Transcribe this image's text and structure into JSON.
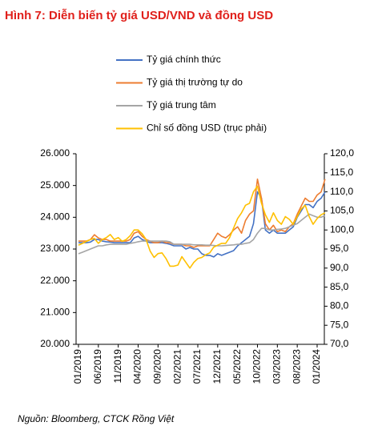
{
  "chart_data": {
    "type": "line",
    "title": "Hình 7: Diễn biến tỷ giá USD/VND và đồng USD",
    "source": "Nguồn: Bloomberg, CTCK Rồng Việt",
    "categories": [
      "01/2019",
      null,
      null,
      null,
      null,
      "06/2019",
      null,
      null,
      null,
      null,
      "11/2019",
      null,
      null,
      null,
      null,
      "04/2020",
      null,
      null,
      null,
      null,
      "09/2020",
      null,
      null,
      null,
      null,
      "02/2021",
      null,
      null,
      null,
      null,
      "07/2021",
      null,
      null,
      null,
      null,
      "12/2021",
      null,
      null,
      null,
      null,
      "05/2022",
      null,
      null,
      null,
      null,
      "10/2022",
      null,
      null,
      null,
      null,
      "03/2023",
      null,
      null,
      null,
      null,
      "08/2023",
      null,
      null,
      null,
      null,
      "01/2024",
      null,
      null
    ],
    "series": [
      {
        "name": "Tỷ giá chính thức",
        "color": "#4472c4",
        "values": [
          23200,
          23200,
          23200,
          23220,
          23300,
          23300,
          23250,
          23230,
          23220,
          23200,
          23200,
          23200,
          23200,
          23200,
          23350,
          23400,
          23300,
          23250,
          23200,
          23200,
          23200,
          23200,
          23180,
          23150,
          23100,
          23100,
          23100,
          23000,
          23050,
          23000,
          23000,
          22850,
          22800,
          22800,
          22750,
          22850,
          22800,
          22850,
          22900,
          22950,
          23100,
          23200,
          23300,
          23400,
          23800,
          24800,
          24600,
          23600,
          23500,
          23600,
          23500,
          23500,
          23500,
          23600,
          23700,
          24000,
          24200,
          24400,
          24400,
          24300,
          24500,
          24600,
          24800
        ]
      },
      {
        "name": "Tỷ giá thị trường tự do",
        "color": "#ed7d31",
        "values": [
          23250,
          23250,
          23250,
          23300,
          23450,
          23350,
          23300,
          23300,
          23250,
          23250,
          23250,
          23250,
          23250,
          23300,
          23500,
          23550,
          23400,
          23300,
          23250,
          23200,
          23200,
          23250,
          23200,
          23200,
          23150,
          23150,
          23150,
          23100,
          23100,
          23050,
          23100,
          23100,
          23100,
          23100,
          23300,
          23500,
          23400,
          23350,
          23450,
          23600,
          23700,
          23500,
          23900,
          24100,
          24200,
          25200,
          24600,
          23800,
          23600,
          23750,
          23550,
          23600,
          23550,
          23700,
          23800,
          24100,
          24350,
          24600,
          24500,
          24500,
          24700,
          24800,
          25200
        ]
      },
      {
        "name": "Tỷ giá trung tâm",
        "color": "#a5a5a5",
        "values": [
          22850,
          22900,
          22950,
          23000,
          23050,
          23100,
          23100,
          23130,
          23150,
          23150,
          23150,
          23150,
          23150,
          23180,
          23200,
          23230,
          23250,
          23250,
          23250,
          23250,
          23250,
          23250,
          23250,
          23230,
          23150,
          23150,
          23150,
          23150,
          23150,
          23130,
          23130,
          23130,
          23120,
          23120,
          23110,
          23100,
          23100,
          23110,
          23120,
          23130,
          23150,
          23150,
          23180,
          23200,
          23300,
          23500,
          23650,
          23650,
          23600,
          23600,
          23620,
          23630,
          23650,
          23700,
          23750,
          23800,
          23900,
          24000,
          24100,
          24050,
          24000,
          24000,
          24050
        ]
      },
      {
        "name": "Chỉ số đồng USD (trục phải)",
        "color": "#ffc000",
        "axis": "y2",
        "values": [
          96,
          96.5,
          97,
          97.5,
          97.8,
          96.5,
          97.5,
          98,
          98.8,
          97.5,
          98,
          97,
          97.5,
          98.5,
          100,
          100,
          99,
          97.5,
          94.5,
          92.8,
          93.8,
          94,
          92.5,
          90.5,
          90.5,
          90.8,
          93,
          91.5,
          90,
          91.5,
          92.5,
          92.8,
          93.5,
          94,
          95.5,
          96,
          96.5,
          96.5,
          98,
          100.5,
          103,
          104.5,
          106.5,
          107,
          110,
          111.5,
          107,
          104,
          102,
          104.5,
          102.5,
          101.5,
          103.5,
          102.8,
          101.5,
          103.5,
          105.5,
          106.5,
          103.5,
          101.5,
          103,
          104,
          104.5
        ]
      }
    ],
    "ylim": [
      20000,
      26000
    ],
    "yticks": [
      {
        "value": 20000,
        "label": "20.000"
      },
      {
        "value": 21000,
        "label": "21.000"
      },
      {
        "value": 22000,
        "label": "22.000"
      },
      {
        "value": 23000,
        "label": "23.000"
      },
      {
        "value": 24000,
        "label": "24.000"
      },
      {
        "value": 25000,
        "label": "25.000"
      },
      {
        "value": 26000,
        "label": "26.000"
      }
    ],
    "y2lim": [
      70,
      120
    ],
    "y2ticks": [
      {
        "value": 70,
        "label": "70,0"
      },
      {
        "value": 75,
        "label": "75,0"
      },
      {
        "value": 80,
        "label": "80,0"
      },
      {
        "value": 85,
        "label": "85,0"
      },
      {
        "value": 90,
        "label": "90,0"
      },
      {
        "value": 95,
        "label": "95,0"
      },
      {
        "value": 100,
        "label": "100,0"
      },
      {
        "value": 105,
        "label": "105,0"
      },
      {
        "value": 110,
        "label": "110,0"
      },
      {
        "value": 115,
        "label": "115,0"
      },
      {
        "value": 120,
        "label": "120,0"
      }
    ]
  }
}
